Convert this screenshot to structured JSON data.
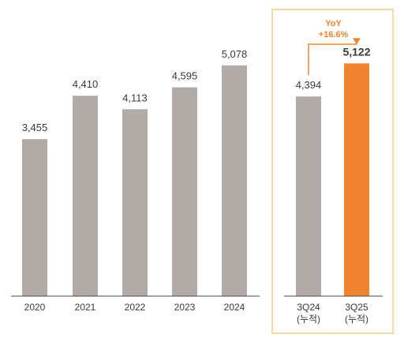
{
  "chart_data": {
    "type": "bar",
    "title": "",
    "xlabel": "",
    "ylabel": "",
    "categories": [
      "2020",
      "2021",
      "2022",
      "2023",
      "2024",
      "3Q24\n(누적)",
      "3Q25\n(누적)"
    ],
    "values": [
      3455,
      4410,
      4113,
      4595,
      5078,
      4394,
      5122
    ],
    "value_labels": [
      "3,455",
      "4,410",
      "4,113",
      "4,595",
      "5,078",
      "4,394",
      "5,122"
    ],
    "ylim": [
      0,
      5700
    ],
    "grid": false,
    "highlight_group": [
      "3Q24\n(누적)",
      "3Q25\n(누적)"
    ],
    "highlight_bar": "3Q25\n(누적)",
    "annotation": {
      "line1": "YoY",
      "line2": "+16.6%"
    }
  },
  "colors": {
    "bar": "#b1aaa6",
    "highlight_bar": "#f0832f",
    "highlight_box_border": "#f6d9a2",
    "annotation": "#f0832f",
    "axis": "#4a4a4a",
    "text": "#3a3a3a"
  }
}
